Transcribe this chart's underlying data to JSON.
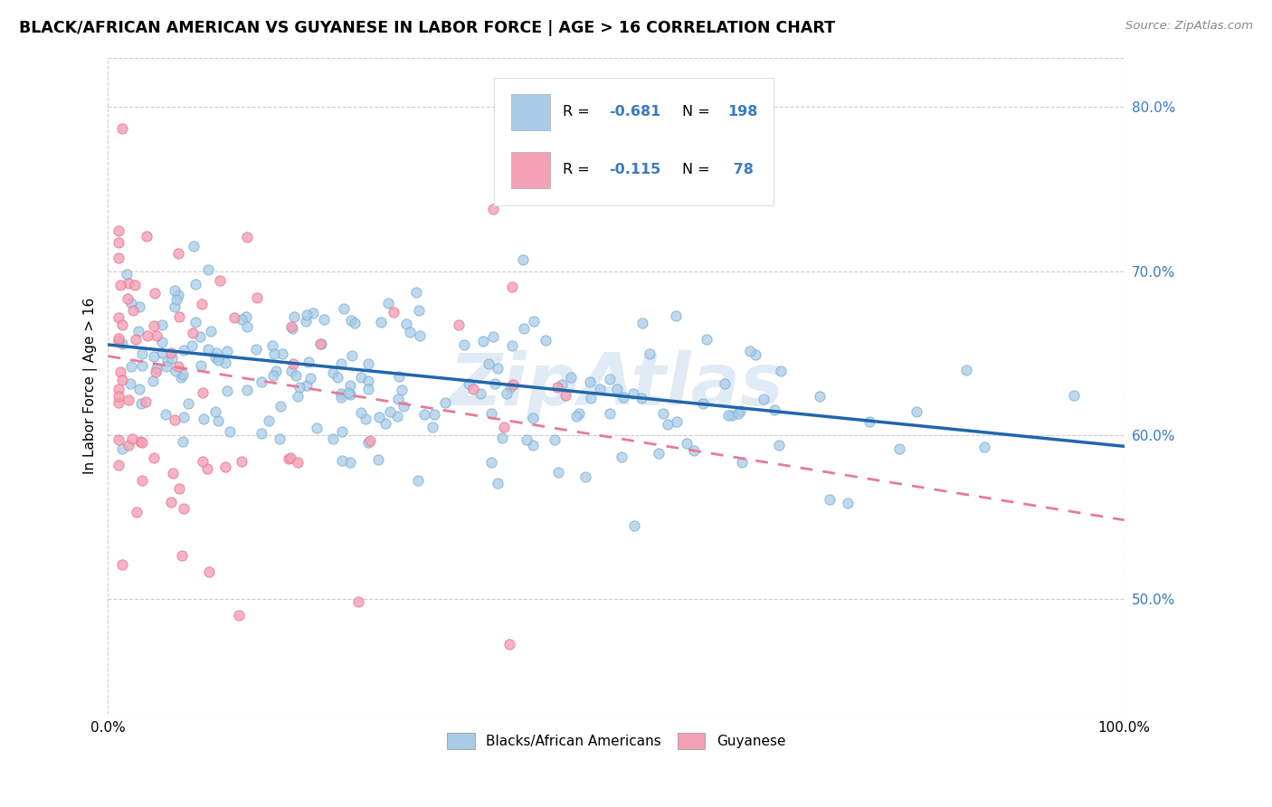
{
  "title": "BLACK/AFRICAN AMERICAN VS GUYANESE IN LABOR FORCE | AGE > 16 CORRELATION CHART",
  "source": "Source: ZipAtlas.com",
  "ylabel": "In Labor Force | Age > 16",
  "x_range": [
    0.0,
    1.0
  ],
  "y_range": [
    0.43,
    0.83
  ],
  "yticks": [
    0.5,
    0.6,
    0.7,
    0.8
  ],
  "ytick_labels": [
    "50.0%",
    "60.0%",
    "70.0%",
    "80.0%"
  ],
  "xtick_labels": [
    "0.0%",
    "100.0%"
  ],
  "blue_R": "-0.681",
  "blue_N": "198",
  "pink_R": "-0.115",
  "pink_N": "78",
  "blue_dot_color": "#a8cce8",
  "blue_dot_edge": "#7bafd4",
  "pink_dot_color": "#f4a0b5",
  "pink_dot_edge": "#e87a96",
  "blue_line_color": "#2166ac",
  "pink_line_color": "#e87a96",
  "tick_color": "#3a7abf",
  "legend_label_blue": "Blacks/African Americans",
  "legend_label_pink": "Guyanese",
  "watermark": "ZipAtlas",
  "watermark_color": "#c5d8ee",
  "grid_color": "#cccccc",
  "blue_line_start_y": 0.655,
  "blue_line_end_y": 0.593,
  "pink_line_start_x": 0.0,
  "pink_line_start_y": 0.648,
  "pink_line_end_x": 1.0,
  "pink_line_end_y": 0.548
}
